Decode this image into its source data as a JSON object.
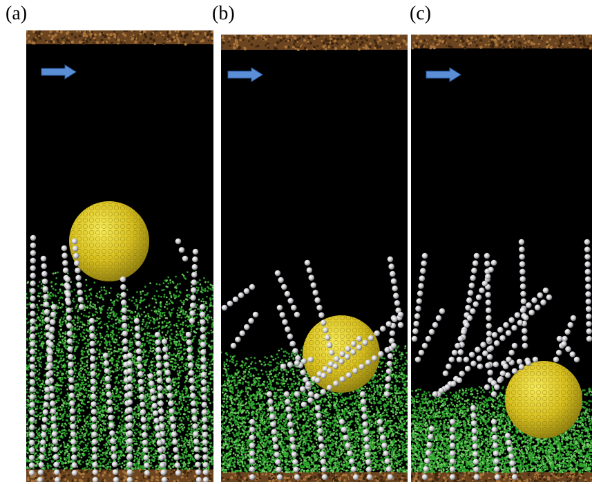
{
  "panels": [
    {
      "label": "(a)"
    },
    {
      "label": "(b)"
    },
    {
      "label": "(c)"
    }
  ],
  "colors": {
    "background": "#000000",
    "wall": "#6b4420",
    "wall_grain": "#a8743a",
    "sphere": "#d8c020",
    "sphere_shade": "#8a7a10",
    "polymer_bead": "#c8c8cc",
    "solvent": "#2fa82f",
    "arrow": "#5a8fd8"
  },
  "icons": {
    "flow_arrow": "flow-arrow-icon"
  }
}
